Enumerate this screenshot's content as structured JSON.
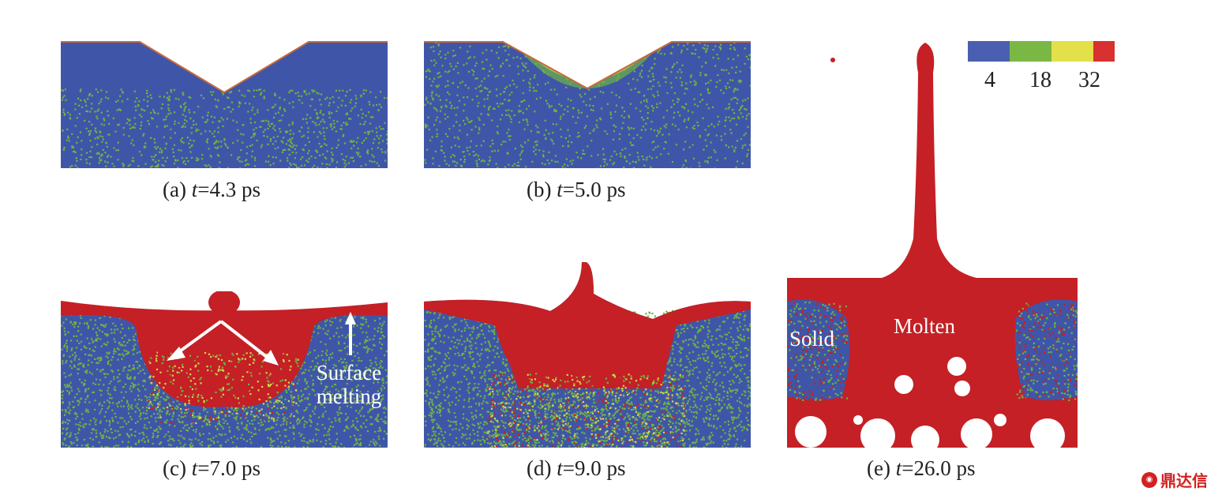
{
  "panels": [
    {
      "id": "a",
      "prefix": "(a) ",
      "var": "t",
      "value": "=4.3 ps"
    },
    {
      "id": "b",
      "prefix": "(b) ",
      "var": "t",
      "value": "=5.0 ps"
    },
    {
      "id": "c",
      "prefix": "(c) ",
      "var": "t",
      "value": "=7.0 ps"
    },
    {
      "id": "d",
      "prefix": "(d) ",
      "var": "t",
      "value": "=9.0 ps"
    },
    {
      "id": "e",
      "prefix": "(e) ",
      "var": "t",
      "value": "=26.0 ps"
    }
  ],
  "annotations": {
    "surface_line1": "Surface",
    "surface_line2": "melting",
    "solid": "Solid",
    "molten": "Molten"
  },
  "colorbar": {
    "colors": [
      "#4a5fb0",
      "#7ab845",
      "#e3e04a",
      "#d93030"
    ],
    "ticks": [
      "4",
      "18",
      "32"
    ]
  },
  "watermark": "鼎达信",
  "palette": {
    "blue": "#3d55a8",
    "green": "#6fb246",
    "yellow": "#d9d64a",
    "red": "#c42026"
  }
}
